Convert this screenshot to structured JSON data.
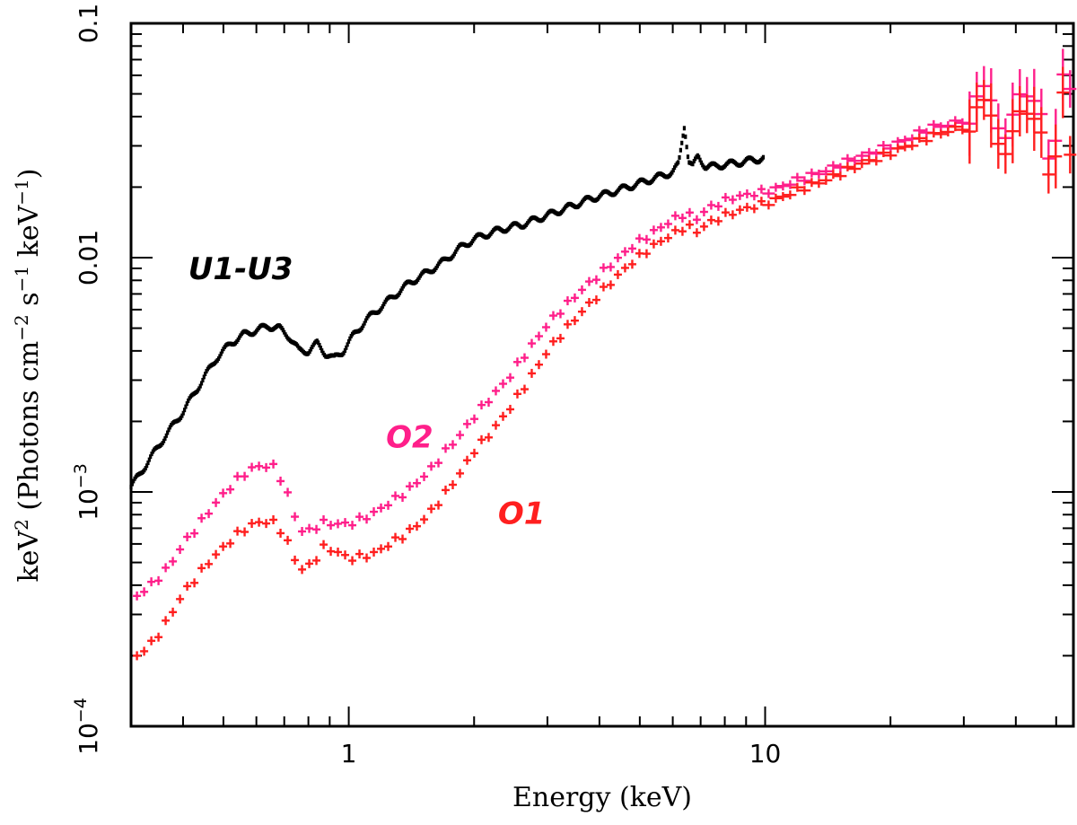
{
  "chart_data": {
    "type": "scatter",
    "title": "",
    "xlabel": "Energy (keV)",
    "ylabel": "keV2 (Photons cm−2 s−1 keV−1)",
    "ylabel_parts": {
      "a": "keV",
      "a_sup": "2",
      "b": " (Photons cm",
      "b_sup": "−2",
      "c": " s",
      "c_sup": "−1",
      "d": " keV",
      "d_sup": "−1",
      "e": ")"
    },
    "xscale": "log",
    "yscale": "log",
    "xlim": [
      0.3,
      55
    ],
    "ylim": [
      0.0001,
      0.1
    ],
    "x_ticks": [
      {
        "value": 1,
        "label": "1"
      },
      {
        "value": 10,
        "label": "10"
      }
    ],
    "y_ticks": [
      {
        "value": 0.0001,
        "base": "10",
        "exp": "−4"
      },
      {
        "value": 0.001,
        "base": "10",
        "exp": "−3"
      },
      {
        "value": 0.01,
        "label": "0.01"
      },
      {
        "value": 0.1,
        "label": "0.1"
      }
    ],
    "series": [
      {
        "name": "U1-U3",
        "color": "#000000",
        "marker": "dot",
        "points": [
          [
            0.3,
            0.00105
          ],
          [
            0.33,
            0.00135
          ],
          [
            0.36,
            0.0017
          ],
          [
            0.4,
            0.0022
          ],
          [
            0.44,
            0.0029
          ],
          [
            0.48,
            0.0037
          ],
          [
            0.52,
            0.0043
          ],
          [
            0.56,
            0.0047
          ],
          [
            0.6,
            0.0049
          ],
          [
            0.64,
            0.0051
          ],
          [
            0.68,
            0.005
          ],
          [
            0.72,
            0.0046
          ],
          [
            0.76,
            0.004
          ],
          [
            0.8,
            0.004
          ],
          [
            0.84,
            0.0043
          ],
          [
            0.88,
            0.0039
          ],
          [
            0.92,
            0.0037
          ],
          [
            0.97,
            0.004
          ],
          [
            1.03,
            0.0047
          ],
          [
            1.1,
            0.0054
          ],
          [
            1.2,
            0.0062
          ],
          [
            1.3,
            0.007
          ],
          [
            1.4,
            0.0078
          ],
          [
            1.55,
            0.0087
          ],
          [
            1.7,
            0.0097
          ],
          [
            1.85,
            0.011
          ],
          [
            2.0,
            0.012
          ],
          [
            2.2,
            0.0128
          ],
          [
            2.4,
            0.0134
          ],
          [
            2.6,
            0.0138
          ],
          [
            2.8,
            0.0145
          ],
          [
            3.1,
            0.0155
          ],
          [
            3.4,
            0.0165
          ],
          [
            3.8,
            0.0178
          ],
          [
            4.2,
            0.0188
          ],
          [
            4.6,
            0.0198
          ],
          [
            5.0,
            0.0208
          ],
          [
            5.5,
            0.022
          ],
          [
            6.0,
            0.0232
          ],
          [
            6.2,
            0.025
          ],
          [
            6.4,
            0.037
          ],
          [
            6.55,
            0.026
          ],
          [
            6.7,
            0.0245
          ],
          [
            6.9,
            0.027
          ],
          [
            7.2,
            0.0245
          ],
          [
            7.6,
            0.0245
          ],
          [
            8.0,
            0.025
          ],
          [
            8.5,
            0.0253
          ],
          [
            9.0,
            0.0258
          ],
          [
            9.5,
            0.0262
          ],
          [
            9.9,
            0.0266
          ]
        ]
      },
      {
        "name": "O2",
        "color": "#ff1f8a",
        "marker": "cross",
        "points": [
          [
            0.31,
            0.00036
          ],
          [
            0.34,
            0.00041
          ],
          [
            0.37,
            0.00048
          ],
          [
            0.4,
            0.0006
          ],
          [
            0.43,
            0.0007
          ],
          [
            0.46,
            0.00082
          ],
          [
            0.5,
            0.00098
          ],
          [
            0.54,
            0.00113
          ],
          [
            0.58,
            0.00125
          ],
          [
            0.62,
            0.0013
          ],
          [
            0.66,
            0.00128
          ],
          [
            0.7,
            0.00108
          ],
          [
            0.74,
            0.0008
          ],
          [
            0.78,
            0.00066
          ],
          [
            0.82,
            0.0007
          ],
          [
            0.87,
            0.00074
          ],
          [
            0.93,
            0.00073
          ],
          [
            1.0,
            0.00073
          ],
          [
            1.08,
            0.00077
          ],
          [
            1.16,
            0.00082
          ],
          [
            1.25,
            0.0009
          ],
          [
            1.35,
            0.00098
          ],
          [
            1.46,
            0.0011
          ],
          [
            1.58,
            0.00126
          ],
          [
            1.7,
            0.00148
          ],
          [
            1.85,
            0.00175
          ],
          [
            2.0,
            0.0021
          ],
          [
            2.2,
            0.00255
          ],
          [
            2.4,
            0.003
          ],
          [
            2.6,
            0.0037
          ],
          [
            2.8,
            0.0044
          ],
          [
            3.0,
            0.0052
          ],
          [
            3.3,
            0.0062
          ],
          [
            3.6,
            0.0072
          ],
          [
            4.0,
            0.0085
          ],
          [
            4.4,
            0.0098
          ],
          [
            4.8,
            0.0112
          ],
          [
            5.3,
            0.0126
          ],
          [
            5.8,
            0.014
          ],
          [
            6.2,
            0.015
          ],
          [
            6.5,
            0.0155
          ],
          [
            6.8,
            0.0145
          ],
          [
            7.2,
            0.016
          ],
          [
            7.7,
            0.017
          ],
          [
            8.3,
            0.018
          ],
          [
            9.0,
            0.0185
          ],
          [
            10.5,
            0.0195
          ],
          [
            12,
            0.0215
          ],
          [
            14,
            0.0235
          ],
          [
            16,
            0.026
          ],
          [
            18,
            0.028
          ],
          [
            20,
            0.03
          ],
          [
            22,
            0.032
          ],
          [
            25,
            0.036
          ],
          [
            28,
            0.037
          ],
          [
            31,
            0.04
          ],
          [
            34,
            0.044
          ],
          [
            37,
            0.042
          ],
          [
            40,
            0.046
          ],
          [
            43,
            0.038
          ],
          [
            46,
            0.048
          ],
          [
            49,
            0.03
          ],
          [
            52,
            0.055
          ],
          [
            54,
            0.042
          ]
        ]
      },
      {
        "name": "O1",
        "color": "#ff1f1f",
        "marker": "cross",
        "points": [
          [
            0.31,
            0.0002
          ],
          [
            0.34,
            0.00023
          ],
          [
            0.37,
            0.00029
          ],
          [
            0.4,
            0.00037
          ],
          [
            0.43,
            0.00043
          ],
          [
            0.46,
            0.0005
          ],
          [
            0.5,
            0.00058
          ],
          [
            0.54,
            0.00066
          ],
          [
            0.58,
            0.00072
          ],
          [
            0.62,
            0.00075
          ],
          [
            0.66,
            0.00074
          ],
          [
            0.7,
            0.00066
          ],
          [
            0.74,
            0.00052
          ],
          [
            0.78,
            0.00046
          ],
          [
            0.82,
            0.0005
          ],
          [
            0.87,
            0.00058
          ],
          [
            0.93,
            0.00056
          ],
          [
            1.0,
            0.00052
          ],
          [
            1.08,
            0.00053
          ],
          [
            1.16,
            0.00055
          ],
          [
            1.25,
            0.0006
          ],
          [
            1.35,
            0.00065
          ],
          [
            1.46,
            0.00072
          ],
          [
            1.58,
            0.00083
          ],
          [
            1.7,
            0.00098
          ],
          [
            1.85,
            0.0012
          ],
          [
            2.0,
            0.0015
          ],
          [
            2.2,
            0.0018
          ],
          [
            2.4,
            0.0022
          ],
          [
            2.6,
            0.0027
          ],
          [
            2.8,
            0.0033
          ],
          [
            3.0,
            0.004
          ],
          [
            3.3,
            0.0049
          ],
          [
            3.6,
            0.0058
          ],
          [
            4.0,
            0.007
          ],
          [
            4.4,
            0.0083
          ],
          [
            4.8,
            0.0096
          ],
          [
            5.3,
            0.011
          ],
          [
            5.8,
            0.0122
          ],
          [
            6.2,
            0.013
          ],
          [
            6.5,
            0.0138
          ],
          [
            6.8,
            0.0128
          ],
          [
            7.2,
            0.0138
          ],
          [
            7.7,
            0.0147
          ],
          [
            8.3,
            0.0155
          ],
          [
            9.0,
            0.0162
          ],
          [
            10.5,
            0.0175
          ],
          [
            12,
            0.0195
          ],
          [
            14,
            0.0215
          ],
          [
            16,
            0.024
          ],
          [
            18,
            0.026
          ],
          [
            20,
            0.028
          ],
          [
            22,
            0.03
          ],
          [
            25,
            0.033
          ],
          [
            28,
            0.035
          ],
          [
            31,
            0.037
          ],
          [
            34,
            0.038
          ],
          [
            37,
            0.036
          ],
          [
            40,
            0.039
          ],
          [
            43,
            0.032
          ],
          [
            46,
            0.04
          ],
          [
            49,
            0.026
          ],
          [
            52,
            0.046
          ],
          [
            54,
            0.022
          ]
        ]
      }
    ],
    "annotations": [
      {
        "text": "U1-U3",
        "series": "U1-U3",
        "x": 0.55,
        "y": 0.0081,
        "color": "#000000"
      },
      {
        "text": "O2",
        "series": "O2",
        "x": 1.4,
        "y": 0.00155,
        "color": "#ff1f8a"
      },
      {
        "text": "O1",
        "series": "O1",
        "x": 2.6,
        "y": 0.00073,
        "color": "#ff1f1f"
      }
    ]
  }
}
